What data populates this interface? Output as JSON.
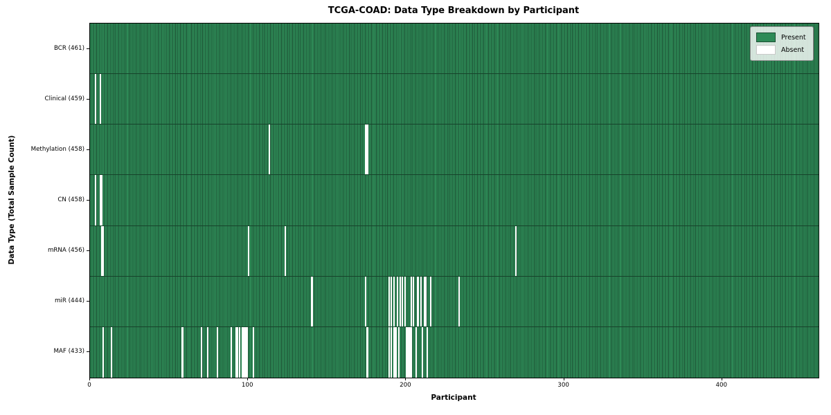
{
  "chart_data": {
    "type": "heatmap",
    "title": "TCGA-COAD: Data Type Breakdown by Participant",
    "xlabel": "Participant",
    "ylabel": "Data Type (Total Sample Count)",
    "legend": {
      "present_label": "Present",
      "absent_label": "Absent",
      "position": "upper right"
    },
    "colors": {
      "present": "#2e8b57",
      "present_edge": "#1c4f33",
      "absent": "#ffffff",
      "axis": "#000000"
    },
    "total_participants": 461,
    "xlim": [
      0,
      461
    ],
    "xticks": [
      0,
      100,
      200,
      300,
      400
    ],
    "grid": false,
    "rows": [
      {
        "name": "BCR",
        "count": 461,
        "absent": []
      },
      {
        "name": "Clinical",
        "count": 459,
        "absent": [
          3,
          6
        ]
      },
      {
        "name": "Methylation",
        "count": 458,
        "absent": [
          113,
          174,
          175
        ]
      },
      {
        "name": "CN",
        "count": 458,
        "absent": [
          3,
          6,
          7
        ]
      },
      {
        "name": "mRNA",
        "count": 456,
        "absent": [
          7,
          8,
          100,
          123,
          269
        ]
      },
      {
        "name": "miR",
        "count": 444,
        "absent": [
          140,
          174,
          189,
          190,
          192,
          194,
          196,
          197,
          199,
          203,
          204,
          207,
          209,
          211,
          212,
          215,
          233
        ]
      },
      {
        "name": "MAF",
        "count": 433,
        "absent": [
          8,
          13,
          58,
          70,
          74,
          80,
          89,
          92,
          93,
          94,
          96,
          97,
          98,
          99,
          103,
          175,
          189,
          190,
          192,
          193,
          195,
          200,
          201,
          202,
          203,
          206,
          210,
          213
        ]
      }
    ]
  }
}
